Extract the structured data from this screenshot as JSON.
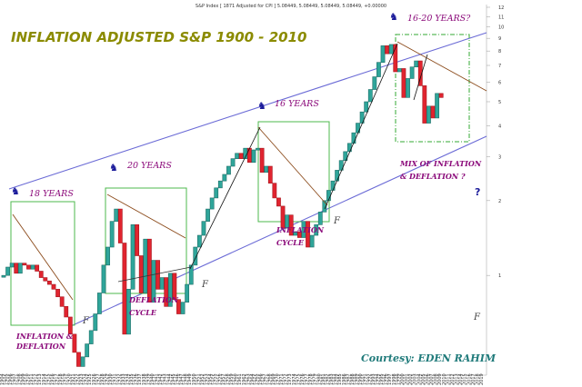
{
  "header": {
    "text": "S&P Index [ 1871 Adjusted for CPI ] 5.08449, 5.08449, 5.08449, 5.08449, +0.00000"
  },
  "chart_data": {
    "type": "candlestick",
    "title": "INFLATION ADJUSTED S&P 1900 - 2010",
    "xlabel": "",
    "ylabel": "",
    "yscale": "log",
    "ylim": [
      0.4,
      12
    ],
    "y_ticks": [
      "12",
      "11",
      "10",
      "9",
      "8",
      "7",
      "6",
      "5",
      "4",
      "3",
      "2",
      "1"
    ],
    "x_start_year": 1904,
    "x_end_year": 2019,
    "colors": {
      "up": "#2fa59a",
      "down": "#e0242f"
    },
    "series": [
      {
        "year": 1904,
        "open": 1.0,
        "close": 1.0
      },
      {
        "year": 1905,
        "open": 1.0,
        "close": 1.08
      },
      {
        "year": 1906,
        "open": 1.08,
        "close": 1.12
      },
      {
        "year": 1907,
        "open": 1.12,
        "close": 1.02
      },
      {
        "year": 1908,
        "open": 1.02,
        "close": 1.12
      },
      {
        "year": 1909,
        "open": 1.12,
        "close": 1.1
      },
      {
        "year": 1910,
        "open": 1.1,
        "close": 1.06
      },
      {
        "year": 1911,
        "open": 1.06,
        "close": 1.1
      },
      {
        "year": 1912,
        "open": 1.1,
        "close": 1.04
      },
      {
        "year": 1913,
        "open": 1.04,
        "close": 0.98
      },
      {
        "year": 1914,
        "open": 0.98,
        "close": 0.95
      },
      {
        "year": 1915,
        "open": 0.95,
        "close": 0.92
      },
      {
        "year": 1916,
        "open": 0.92,
        "close": 0.88
      },
      {
        "year": 1917,
        "open": 0.88,
        "close": 0.82
      },
      {
        "year": 1918,
        "open": 0.82,
        "close": 0.75
      },
      {
        "year": 1919,
        "open": 0.75,
        "close": 0.68
      },
      {
        "year": 1920,
        "open": 0.68,
        "close": 0.58
      },
      {
        "year": 1921,
        "open": 0.58,
        "close": 0.49
      },
      {
        "year": 1922,
        "open": 0.49,
        "close": 0.43
      },
      {
        "year": 1923,
        "open": 0.43,
        "close": 0.47
      },
      {
        "year": 1924,
        "open": 0.47,
        "close": 0.53
      },
      {
        "year": 1925,
        "open": 0.53,
        "close": 0.6
      },
      {
        "year": 1926,
        "open": 0.6,
        "close": 0.7
      },
      {
        "year": 1927,
        "open": 0.7,
        "close": 0.85
      },
      {
        "year": 1928,
        "open": 0.85,
        "close": 1.1
      },
      {
        "year": 1929,
        "open": 1.1,
        "close": 1.3
      },
      {
        "year": 1930,
        "open": 1.3,
        "close": 1.65
      },
      {
        "year": 1931,
        "open": 1.65,
        "close": 1.85
      },
      {
        "year": 1932,
        "open": 1.85,
        "close": 1.35
      },
      {
        "year": 1933,
        "open": 1.35,
        "close": 0.58
      },
      {
        "year": 1934,
        "open": 0.58,
        "close": 0.88
      },
      {
        "year": 1935,
        "open": 0.88,
        "close": 1.6
      },
      {
        "year": 1936,
        "open": 1.6,
        "close": 1.2
      },
      {
        "year": 1937,
        "open": 1.2,
        "close": 0.85
      },
      {
        "year": 1938,
        "open": 0.85,
        "close": 1.4
      },
      {
        "year": 1939,
        "open": 1.4,
        "close": 0.78
      },
      {
        "year": 1940,
        "open": 0.78,
        "close": 1.15
      },
      {
        "year": 1941,
        "open": 1.15,
        "close": 0.88
      },
      {
        "year": 1942,
        "open": 0.88,
        "close": 0.98
      },
      {
        "year": 1943,
        "open": 0.98,
        "close": 0.75
      },
      {
        "year": 1944,
        "open": 0.75,
        "close": 1.02
      },
      {
        "year": 1945,
        "open": 1.02,
        "close": 0.8
      },
      {
        "year": 1946,
        "open": 0.8,
        "close": 0.7
      },
      {
        "year": 1947,
        "open": 0.7,
        "close": 0.78
      },
      {
        "year": 1948,
        "open": 0.78,
        "close": 0.92
      },
      {
        "year": 1949,
        "open": 0.92,
        "close": 1.1
      },
      {
        "year": 1950,
        "open": 1.1,
        "close": 1.3
      },
      {
        "year": 1951,
        "open": 1.3,
        "close": 1.45
      },
      {
        "year": 1952,
        "open": 1.45,
        "close": 1.65
      },
      {
        "year": 1953,
        "open": 1.65,
        "close": 1.85
      },
      {
        "year": 1954,
        "open": 1.85,
        "close": 2.05
      },
      {
        "year": 1955,
        "open": 2.05,
        "close": 2.25
      },
      {
        "year": 1956,
        "open": 2.25,
        "close": 2.4
      },
      {
        "year": 1957,
        "open": 2.4,
        "close": 2.55
      },
      {
        "year": 1958,
        "open": 2.55,
        "close": 2.75
      },
      {
        "year": 1959,
        "open": 2.75,
        "close": 2.95
      },
      {
        "year": 1960,
        "open": 2.95,
        "close": 3.1
      },
      {
        "year": 1961,
        "open": 3.1,
        "close": 2.95
      },
      {
        "year": 1962,
        "open": 2.95,
        "close": 3.25
      },
      {
        "year": 1963,
        "open": 3.25,
        "close": 2.85
      },
      {
        "year": 1964,
        "open": 2.85,
        "close": 3.2
      },
      {
        "year": 1965,
        "open": 3.2,
        "close": 3.25
      },
      {
        "year": 1966,
        "open": 3.25,
        "close": 2.6
      },
      {
        "year": 1967,
        "open": 2.6,
        "close": 2.75
      },
      {
        "year": 1968,
        "open": 2.75,
        "close": 2.35
      },
      {
        "year": 1969,
        "open": 2.35,
        "close": 2.05
      },
      {
        "year": 1970,
        "open": 2.05,
        "close": 1.9
      },
      {
        "year": 1971,
        "open": 1.9,
        "close": 1.55
      },
      {
        "year": 1972,
        "open": 1.55,
        "close": 1.75
      },
      {
        "year": 1973,
        "open": 1.75,
        "close": 1.45
      },
      {
        "year": 1974,
        "open": 1.45,
        "close": 1.5
      },
      {
        "year": 1975,
        "open": 1.5,
        "close": 1.42
      },
      {
        "year": 1976,
        "open": 1.42,
        "close": 1.65
      },
      {
        "year": 1977,
        "open": 1.65,
        "close": 1.3
      },
      {
        "year": 1978,
        "open": 1.3,
        "close": 1.45
      },
      {
        "year": 1979,
        "open": 1.45,
        "close": 1.6
      },
      {
        "year": 1980,
        "open": 1.6,
        "close": 1.8
      },
      {
        "year": 1981,
        "open": 1.8,
        "close": 2.0
      },
      {
        "year": 1982,
        "open": 2.0,
        "close": 2.2
      },
      {
        "year": 1983,
        "open": 2.2,
        "close": 2.4
      },
      {
        "year": 1984,
        "open": 2.4,
        "close": 2.65
      },
      {
        "year": 1985,
        "open": 2.65,
        "close": 2.9
      },
      {
        "year": 1986,
        "open": 2.9,
        "close": 3.15
      },
      {
        "year": 1987,
        "open": 3.15,
        "close": 3.4
      },
      {
        "year": 1988,
        "open": 3.4,
        "close": 3.75
      },
      {
        "year": 1989,
        "open": 3.75,
        "close": 4.1
      },
      {
        "year": 1990,
        "open": 4.1,
        "close": 4.55
      },
      {
        "year": 1991,
        "open": 4.55,
        "close": 5.0
      },
      {
        "year": 1992,
        "open": 5.0,
        "close": 5.6
      },
      {
        "year": 1993,
        "open": 5.6,
        "close": 6.3
      },
      {
        "year": 1994,
        "open": 6.3,
        "close": 7.2
      },
      {
        "year": 1995,
        "open": 7.2,
        "close": 8.4
      },
      {
        "year": 1996,
        "open": 8.4,
        "close": 7.8
      },
      {
        "year": 1997,
        "open": 7.8,
        "close": 8.5
      },
      {
        "year": 1998,
        "open": 8.5,
        "close": 6.6
      },
      {
        "year": 1999,
        "open": 6.6,
        "close": 6.8
      },
      {
        "year": 2000,
        "open": 6.8,
        "close": 5.2
      },
      {
        "year": 2001,
        "open": 5.2,
        "close": 6.2
      },
      {
        "year": 2002,
        "open": 6.2,
        "close": 6.9
      },
      {
        "year": 2003,
        "open": 6.9,
        "close": 7.3
      },
      {
        "year": 2004,
        "open": 7.3,
        "close": 5.8
      },
      {
        "year": 2005,
        "open": 5.8,
        "close": 4.1
      },
      {
        "year": 2006,
        "open": 4.1,
        "close": 4.8
      },
      {
        "year": 2007,
        "open": 4.8,
        "close": 4.3
      },
      {
        "year": 2008,
        "open": 4.3,
        "close": 5.4
      },
      {
        "year": 2009,
        "open": 5.4,
        "close": 5.2
      }
    ],
    "annotations": {
      "cycle_labels": [
        "18 YEARS",
        "20 YEARS",
        "16 YEARS",
        "16-20 YEARS?"
      ],
      "box_labels": [
        "INFLATION &",
        "DEFLATION",
        "DEFLATION",
        "CYCLE",
        "INFLATION",
        "CYCLE",
        "MIX OF INFLATION",
        "& DEFLATION ?"
      ],
      "question_mark": "?",
      "credit": "Courtesy: EDEN RAHIM",
      "signal_marker": "F"
    }
  }
}
